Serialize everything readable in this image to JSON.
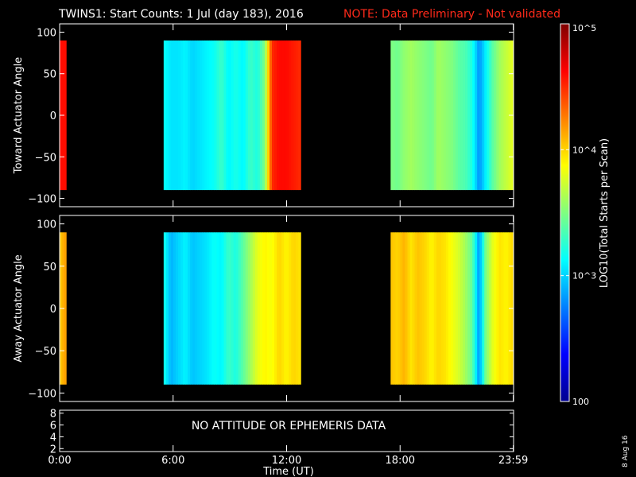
{
  "title": {
    "main": "TWINS1: Start Counts:  1 Jul (day 183), 2016",
    "note": "NOTE: Data Preliminary - Not validated"
  },
  "footer_date": "8 Aug 16",
  "colors": {
    "background": "#000000",
    "foreground": "#ffffff",
    "note": "#ff2a1a"
  },
  "chart_data": {
    "type": "heatmap",
    "x": {
      "label": "Time (UT)",
      "range_hours": [
        0,
        24
      ],
      "ticks": [
        {
          "hour": 0,
          "label": "0:00"
        },
        {
          "hour": 6,
          "label": "6:00"
        },
        {
          "hour": 12,
          "label": "12:00"
        },
        {
          "hour": 18,
          "label": "18:00"
        },
        {
          "hour": 23.983,
          "label": "23:59"
        }
      ]
    },
    "colorbar": {
      "label": "LOG10(Total Starts per Scan)",
      "scale": "log",
      "range": [
        100,
        100000
      ],
      "colormap": "jet",
      "ticks": [
        {
          "value": 100,
          "label": "100"
        },
        {
          "value": 1000,
          "label": "10^3"
        },
        {
          "value": 10000,
          "label": "10^4"
        },
        {
          "value": 100000,
          "label": "10^5"
        }
      ]
    },
    "panels": [
      {
        "ylabel": "Toward Actuator Angle",
        "ylim": [
          -110,
          110
        ],
        "yticks": [
          100,
          50,
          0,
          -50,
          -100
        ],
        "data_range_y": [
          -90,
          90
        ],
        "segments": [
          {
            "start": 0.0,
            "end": 0.35,
            "profile": [
              4.6,
              4.6,
              4.58,
              4.6
            ]
          },
          {
            "start": 5.5,
            "end": 12.75,
            "profile": [
              3.15,
              3.05,
              3.05,
              3.1,
              3.0,
              3.05,
              3.1,
              3.15,
              3.3,
              3.1,
              3.2,
              3.1,
              3.3,
              3.2,
              3.5,
              4.5,
              4.6,
              4.6,
              4.55,
              4.5
            ]
          },
          {
            "start": 17.5,
            "end": 23.98,
            "profile": [
              3.5,
              3.45,
              3.55,
              3.6,
              3.55,
              3.5,
              3.45,
              3.6,
              3.55,
              3.5,
              3.4,
              3.35,
              3.2,
              2.8,
              3.1,
              3.4,
              3.6,
              3.7,
              3.8
            ]
          }
        ]
      },
      {
        "ylabel": "Away Actuator Angle",
        "ylim": [
          -110,
          110
        ],
        "yticks": [
          100,
          50,
          0,
          -50,
          -100
        ],
        "data_range_y": [
          -90,
          90
        ],
        "segments": [
          {
            "start": 0.0,
            "end": 0.35,
            "profile": [
              4.4,
              3.7,
              4.5,
              3.8
            ]
          },
          {
            "start": 5.5,
            "end": 12.75,
            "profile": [
              3.2,
              2.9,
              3.0,
              3.1,
              2.95,
              3.0,
              3.05,
              3.15,
              3.1,
              3.3,
              3.2,
              3.4,
              3.6,
              3.8,
              3.9,
              3.85,
              4.0,
              3.9,
              4.0,
              3.95
            ]
          },
          {
            "start": 17.5,
            "end": 23.98,
            "profile": [
              4.05,
              4.0,
              4.1,
              3.95,
              4.05,
              4.0,
              3.9,
              4.0,
              3.95,
              3.85,
              3.75,
              3.6,
              3.4,
              2.8,
              3.5,
              3.8,
              3.95,
              3.9,
              4.0
            ]
          }
        ]
      }
    ],
    "ephemeris_panel": {
      "ylim": [
        1.5,
        8.5
      ],
      "yticks": [
        8,
        6,
        4,
        2
      ],
      "message": "NO ATTITUDE OR EPHEMERIS DATA"
    }
  }
}
